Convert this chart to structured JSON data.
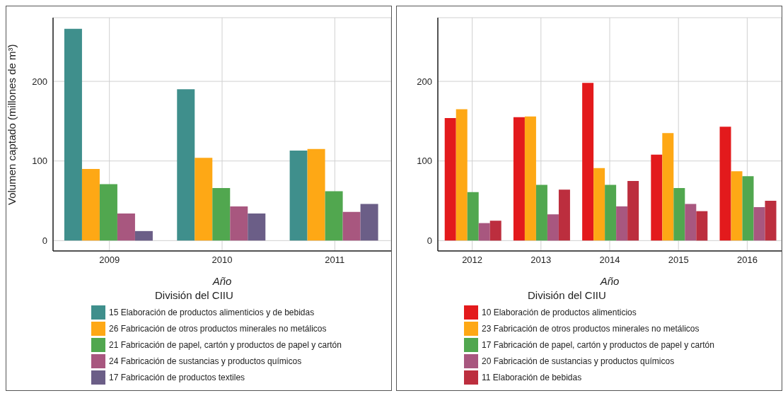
{
  "chart_data": [
    {
      "type": "bar",
      "xlabel": "Año",
      "ylabel": "Volumen captado (millones de m³)",
      "legend_title": "División del CIIU",
      "categories": [
        "2009",
        "2010",
        "2011"
      ],
      "ylim": [
        -13,
        280
      ],
      "yticks": [
        0,
        100,
        200
      ],
      "grid": true,
      "legend": "bottom",
      "series": [
        {
          "name": "15 Elaboración de productos alimenticios y de bebidas",
          "color": "#3f8f8c",
          "values": [
            266,
            190,
            113
          ]
        },
        {
          "name": "26 Fabricación de otros productos minerales no metálicos",
          "color": "#fea815",
          "values": [
            90,
            104,
            115
          ]
        },
        {
          "name": "21 Fabricación de papel, cartón y productos de papel y cartón",
          "color": "#51a74f",
          "values": [
            71,
            66,
            62
          ]
        },
        {
          "name": "24 Fabricación de sustancias y productos químicos",
          "color": "#a8577f",
          "values": [
            34,
            43,
            36
          ]
        },
        {
          "name": "17 Fabricación de productos textiles",
          "color": "#6b5e87",
          "values": [
            12,
            34,
            46
          ]
        }
      ]
    },
    {
      "type": "bar",
      "xlabel": "Año",
      "legend_title": "División del CIIU",
      "categories": [
        "2012",
        "2013",
        "2014",
        "2015",
        "2016"
      ],
      "ylim": [
        -13,
        280
      ],
      "yticks": [
        0,
        100,
        200
      ],
      "grid": true,
      "legend": "bottom",
      "series": [
        {
          "name": "10 Elaboración de productos alimenticios",
          "color": "#e31a1c",
          "values": [
            154,
            155,
            198,
            108,
            143
          ]
        },
        {
          "name": "23 Fabricación de otros productos minerales no metálicos",
          "color": "#fea815",
          "values": [
            165,
            156,
            91,
            135,
            87
          ]
        },
        {
          "name": "17 Fabricación de papel, cartón y productos de papel y cartón",
          "color": "#51a74f",
          "values": [
            61,
            70,
            70,
            66,
            81
          ]
        },
        {
          "name": "20 Fabricación de sustancias y productos químicos",
          "color": "#a8577f",
          "values": [
            22,
            33,
            43,
            46,
            42
          ]
        },
        {
          "name": "11 Elaboración de bebidas",
          "color": "#bc2e3e",
          "values": [
            25,
            64,
            75,
            37,
            50
          ]
        }
      ]
    }
  ]
}
